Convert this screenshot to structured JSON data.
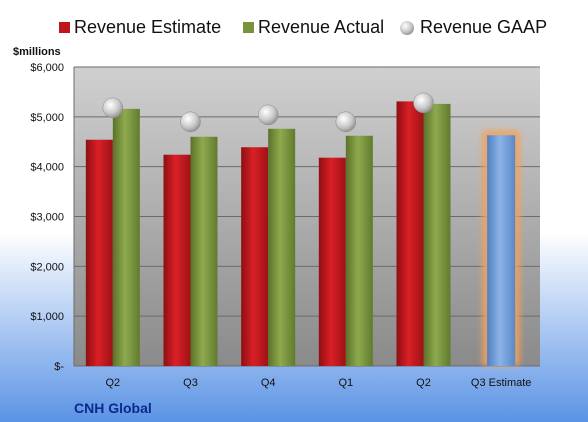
{
  "company": "CNH Global",
  "unit_label": "$millions",
  "colors": {
    "estimate": "#c0161b",
    "actual": "#77933c",
    "gaap": "#c9c9c9",
    "future_estimate": "#6f9fd8",
    "future_glow": "#f5a15a",
    "page_bottom": "#5b93e5",
    "plot_top": "#d0d0d0",
    "plot_bottom": "#8a8a8a"
  },
  "chart_data": {
    "type": "bar",
    "title": "",
    "xlabel": "",
    "ylabel": "$millions",
    "ylim": [
      0,
      6000
    ],
    "y_ticks": [
      0,
      1000,
      2000,
      3000,
      4000,
      5000,
      6000
    ],
    "y_tick_labels": [
      "$-",
      "$1,000",
      "$2,000",
      "$3,000",
      "$4,000",
      "$5,000",
      "$6,000"
    ],
    "grid": true,
    "legend_position": "top",
    "categories": [
      "Q2",
      "Q3",
      "Q4",
      "Q1",
      "Q2",
      "Q3 Estimate"
    ],
    "series": [
      {
        "name": "Revenue Estimate",
        "kind": "bar",
        "values": [
          4540,
          4240,
          4390,
          4180,
          5310,
          null
        ]
      },
      {
        "name": "Revenue Actual",
        "kind": "bar",
        "values": [
          5160,
          4600,
          4760,
          4620,
          5260,
          null
        ]
      },
      {
        "name": "Revenue GAAP",
        "kind": "marker",
        "values": [
          5180,
          4900,
          5040,
          4900,
          5280,
          null
        ]
      }
    ],
    "forecast": {
      "category": "Q3 Estimate",
      "value": 4630
    }
  }
}
